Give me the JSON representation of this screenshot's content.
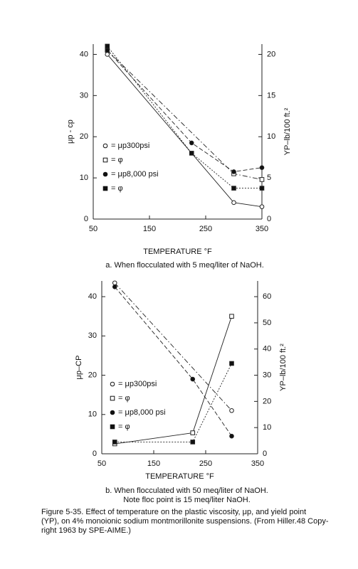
{
  "chart_data": [
    {
      "type": "line",
      "subtitle": [
        "a. When flocculated with 5 meq/liter of NaOH."
      ],
      "x_label": "TEMPERATURE °F",
      "y_label": "μp - cp",
      "y2_label": "YP–lb/100 ft.²",
      "xlim": [
        50,
        350
      ],
      "xticks": [
        50,
        150,
        250,
        350
      ],
      "ylim": [
        0,
        42.5
      ],
      "yticks": [
        0,
        10,
        20,
        30,
        40
      ],
      "y2lim": [
        0,
        21.25
      ],
      "y2ticks": [
        0,
        5,
        10,
        15,
        20
      ],
      "series": [
        {
          "name": "= μp300psi",
          "marker": "open-circle",
          "line_style": "solid",
          "color": "#222",
          "x": [
            75,
            300,
            350
          ],
          "values": [
            40,
            4,
            3
          ]
        },
        {
          "name": "= φ",
          "marker": "open-square",
          "line_style": "dash-dot",
          "color": "#222",
          "axis": "y2",
          "x": [
            75,
            300,
            350
          ],
          "values": [
            20.5,
            5.5,
            4.8
          ]
        },
        {
          "name": "= μp8,000 psi",
          "marker": "filled-circle",
          "line_style": "dashed",
          "color": "#222",
          "x": [
            75,
            225,
            300,
            350
          ],
          "values": [
            41,
            18.5,
            11.5,
            12.5
          ]
        },
        {
          "name": "= φ",
          "marker": "filled-square",
          "line_style": "dotted",
          "color": "#222",
          "axis": "y2",
          "x": [
            75,
            225,
            300,
            350
          ],
          "values": [
            21,
            8,
            3.75,
            3.75
          ]
        }
      ]
    },
    {
      "type": "line",
      "subtitle": [
        "b. When flocculated with 50 meq/liter of NaOH.",
        "Note floc point is 15 meq/liter NaOH."
      ],
      "x_label": "TEMPERATURE °F",
      "y_label": "μp–CP",
      "y2_label": "YP–lb/100 ft.²",
      "xlim": [
        50,
        350
      ],
      "xticks": [
        50,
        150,
        250,
        350
      ],
      "ylim": [
        0,
        44
      ],
      "yticks": [
        0,
        10,
        20,
        30,
        40
      ],
      "y2lim": [
        0,
        66
      ],
      "y2ticks": [
        0,
        10,
        20,
        30,
        40,
        50,
        60
      ],
      "series": [
        {
          "name": "= μp300psi",
          "marker": "open-circle",
          "line_style": "dash-dot",
          "color": "#222",
          "x": [
            75,
            300
          ],
          "values": [
            43.5,
            11
          ]
        },
        {
          "name": "= φ",
          "marker": "open-square",
          "line_style": "solid",
          "color": "#222",
          "axis": "y2",
          "x": [
            75,
            225,
            300
          ],
          "values": [
            3.8,
            8,
            52.5
          ]
        },
        {
          "name": "= μp8,000 psi",
          "marker": "filled-circle",
          "line_style": "dashed",
          "color": "#222",
          "x": [
            75,
            225,
            300
          ],
          "values": [
            42.5,
            19,
            4.5
          ]
        },
        {
          "name": "= φ",
          "marker": "filled-square",
          "line_style": "dotted",
          "color": "#222",
          "axis": "y2",
          "x": [
            75,
            225,
            300
          ],
          "values": [
            4.5,
            4.5,
            34.5
          ]
        }
      ]
    }
  ],
  "caption": [
    "Figure 5-35. Effect of temperature on the plastic viscosity, μp, and yield point",
    "(YP), on 4% monoionic sodium montmorillonite suspensions. (From Hiller.48 Copy-",
    "right 1963 by SPE-AIME.)"
  ]
}
